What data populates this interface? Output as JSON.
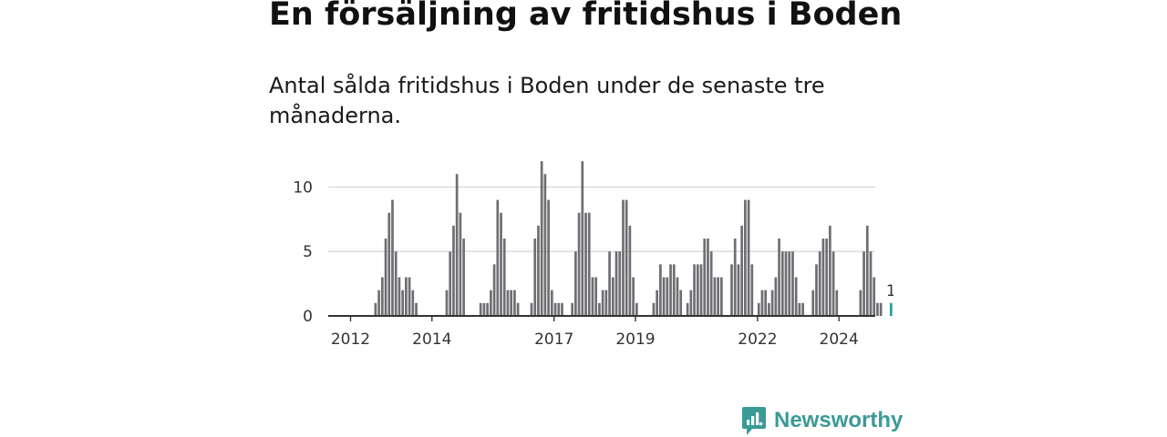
{
  "headline": "En försäljning av fritidshus i Boden",
  "subtitle": "Antal sålda fritidshus i Boden under de senaste tre månaderna.",
  "brand": {
    "name": "Newsworthy",
    "color": "#3a9a96",
    "icon": "newsworthy-logo-icon"
  },
  "colors": {
    "bar": "#6e6e73",
    "highlight": "#2a9d9a",
    "grid": "#d9d9d9",
    "axis": "#333333"
  },
  "chart_data": {
    "type": "bar",
    "title": "Antal sålda fritidshus i Boden",
    "xlabel": "",
    "ylabel": "",
    "ylim": [
      0,
      12.5
    ],
    "yticks": [
      0,
      5,
      10
    ],
    "grid": true,
    "start": "2012-01",
    "x_tick_labels": [
      {
        "label": "2012",
        "year": 2012
      },
      {
        "label": "2014",
        "year": 2014
      },
      {
        "label": "2017",
        "year": 2017
      },
      {
        "label": "2019",
        "year": 2019
      },
      {
        "label": "2022",
        "year": 2022
      },
      {
        "label": "2024",
        "year": 2024
      }
    ],
    "values": [
      0,
      0,
      0,
      0,
      0,
      0,
      0,
      1,
      2,
      3,
      6,
      8,
      9,
      5,
      3,
      2,
      3,
      3,
      2,
      1,
      0,
      0,
      0,
      0,
      0,
      0,
      0,
      0,
      2,
      5,
      7,
      11,
      8,
      6,
      0,
      0,
      0,
      0,
      1,
      1,
      1,
      2,
      4,
      9,
      8,
      6,
      2,
      2,
      2,
      1,
      0,
      0,
      0,
      1,
      6,
      7,
      12,
      11,
      9,
      2,
      1,
      1,
      1,
      0,
      0,
      1,
      5,
      8,
      12,
      8,
      8,
      3,
      3,
      1,
      2,
      2,
      5,
      3,
      5,
      5,
      9,
      9,
      7,
      3,
      1,
      0,
      0,
      0,
      0,
      1,
      2,
      4,
      3,
      3,
      4,
      4,
      3,
      2,
      0,
      1,
      2,
      4,
      4,
      4,
      6,
      6,
      5,
      3,
      3,
      3,
      0,
      0,
      4,
      6,
      4,
      7,
      9,
      9,
      4,
      0,
      1,
      2,
      2,
      1,
      2,
      3,
      6,
      5,
      5,
      5,
      5,
      3,
      1,
      1,
      0,
      0,
      2,
      4,
      5,
      6,
      6,
      7,
      5,
      2,
      0,
      0,
      0,
      0,
      0,
      0,
      2,
      5,
      7,
      5,
      3,
      1,
      1,
      0,
      0,
      1
    ],
    "highlight": {
      "index": 159,
      "value": 1,
      "label": "1"
    }
  }
}
